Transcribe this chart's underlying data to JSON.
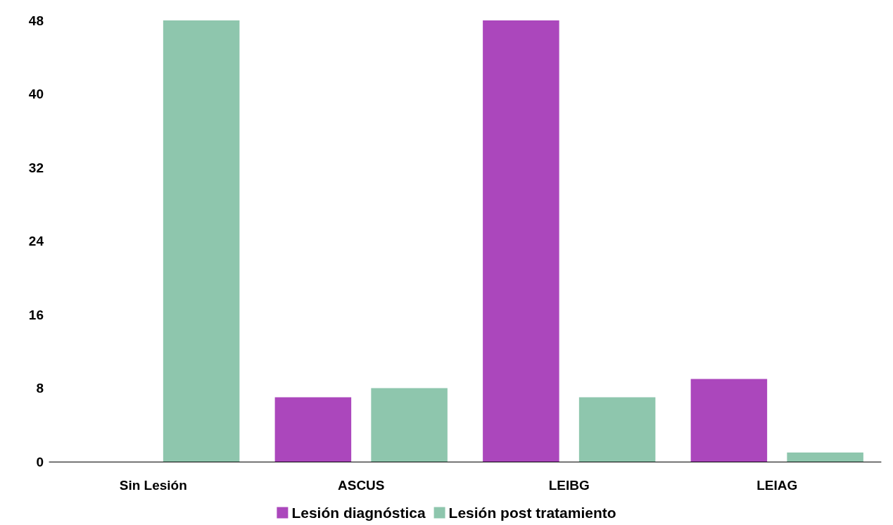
{
  "chart_data": {
    "type": "bar",
    "categories": [
      "Sin Lesión",
      "ASCUS",
      "LEIBG",
      "LEIAG"
    ],
    "series": [
      {
        "name": "Lesión diagnóstica",
        "color": "#ab47bc",
        "values": [
          0,
          7,
          48,
          9
        ]
      },
      {
        "name": "Lesión post tratamiento",
        "color": "#8ec6ad",
        "values": [
          48,
          8,
          7,
          1
        ]
      }
    ],
    "ylim": [
      0,
      48
    ],
    "yticks": [
      0,
      8,
      16,
      24,
      32,
      40,
      48
    ],
    "grid": false,
    "legend": "bottom"
  }
}
